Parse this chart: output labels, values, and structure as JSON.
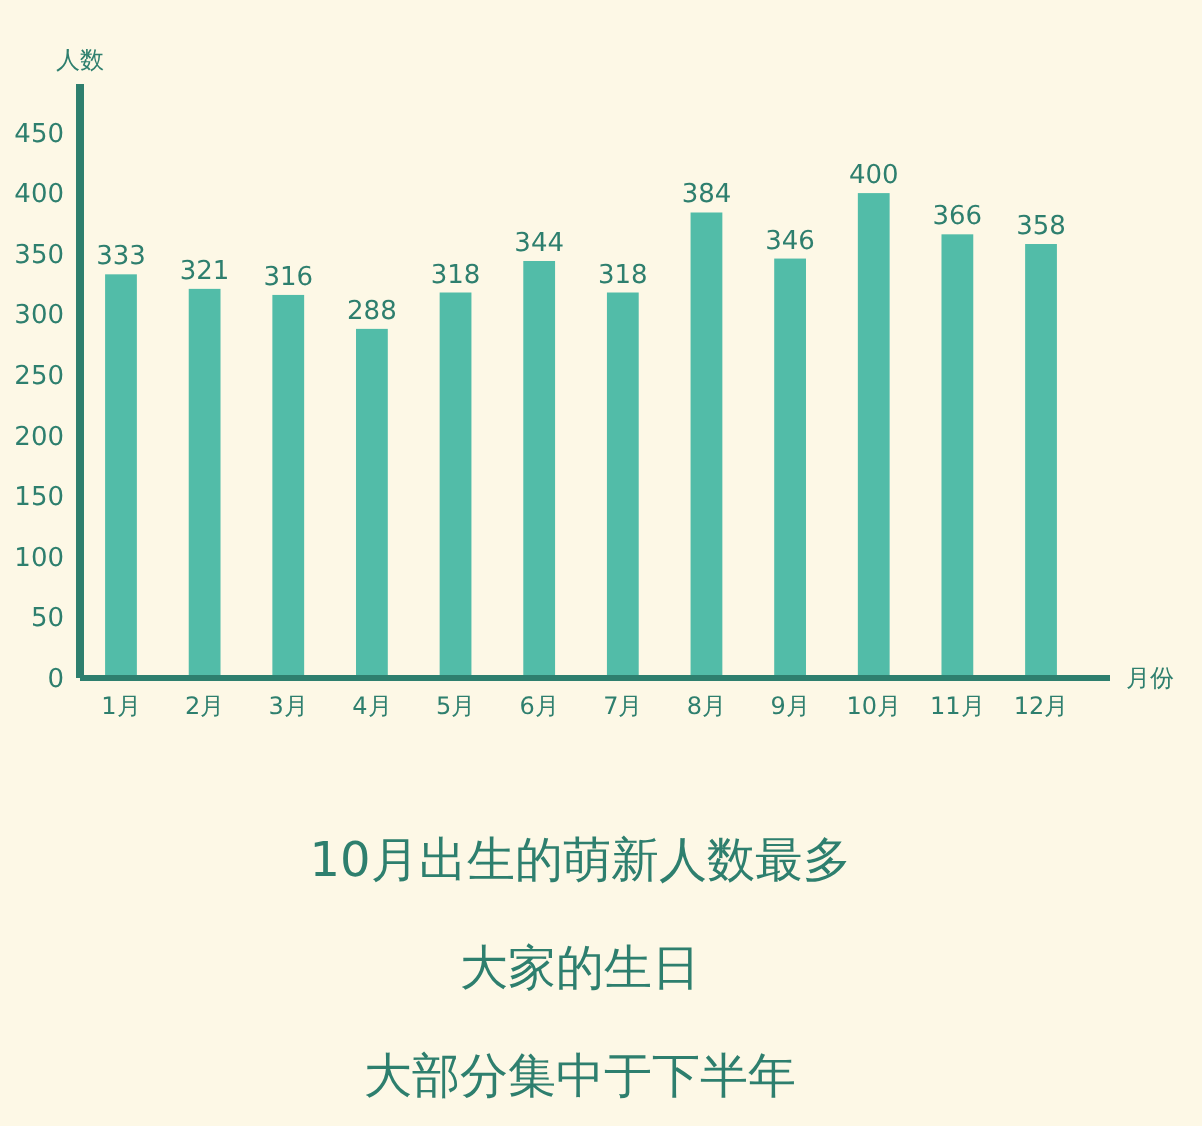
{
  "chart_data": {
    "type": "bar",
    "xlabel": "月份",
    "ylabel": "人数",
    "categories": [
      "1月",
      "2月",
      "3月",
      "4月",
      "5月",
      "6月",
      "7月",
      "8月",
      "9月",
      "10月",
      "11月",
      "12月"
    ],
    "values": [
      333,
      321,
      316,
      288,
      318,
      344,
      318,
      384,
      346,
      400,
      366,
      358
    ],
    "color": "#52bca8",
    "data_labels": true,
    "grid": false,
    "ylim": [
      0,
      490
    ],
    "yticks": [
      0,
      50,
      100,
      150,
      200,
      250,
      300,
      350,
      400,
      450
    ],
    "annotations": [
      "10月出生的萌新人数最多",
      "大家的生日",
      "大部分集中于下半年"
    ]
  }
}
